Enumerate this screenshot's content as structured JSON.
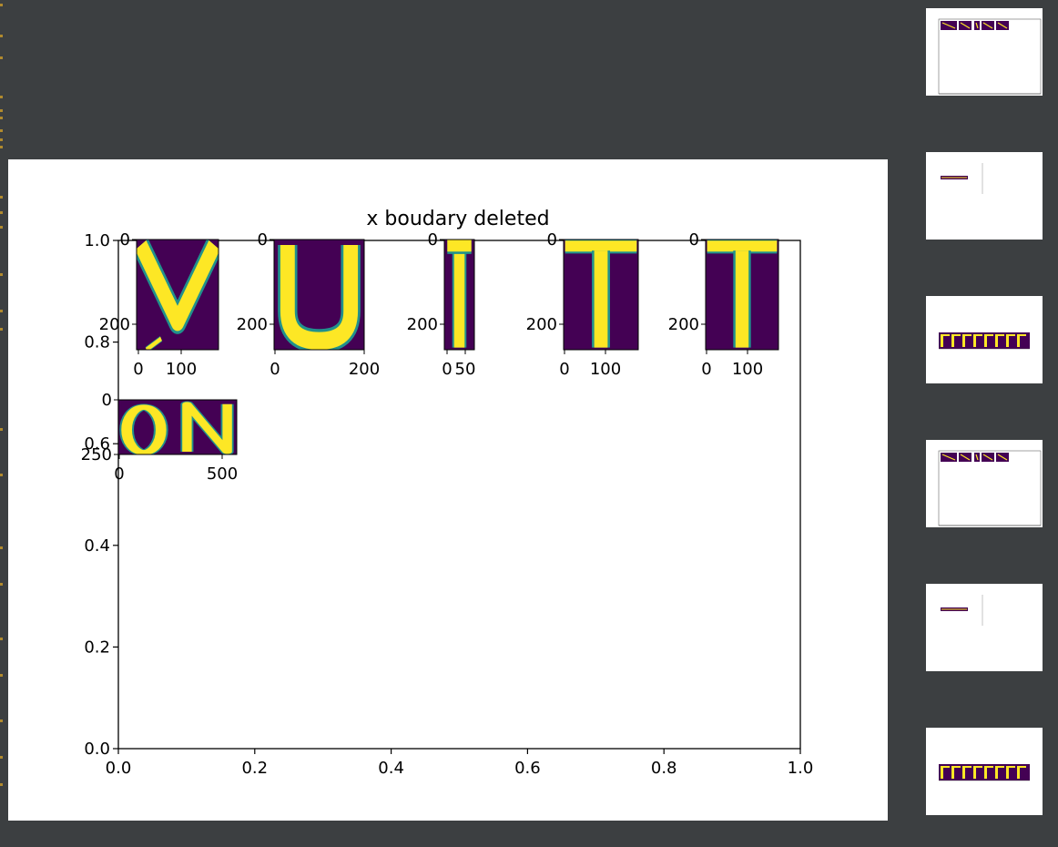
{
  "figure": {
    "title": "x boudary deleted",
    "chart_data": {
      "type": "image-grid",
      "title": "x boudary deleted",
      "main_axes": {
        "xlim": [
          0.0,
          1.0
        ],
        "ylim": [
          0.0,
          1.0
        ],
        "x_ticks": [
          "0.0",
          "0.2",
          "0.4",
          "0.6",
          "0.8",
          "1.0"
        ],
        "y_ticks": [
          "0.0",
          "0.2",
          "0.4",
          "0.6",
          "0.8",
          "1.0"
        ]
      },
      "subimages": [
        {
          "letter": "V",
          "x_ticks": [
            "0",
            "100"
          ],
          "y_ticks": [
            "0",
            "200"
          ]
        },
        {
          "letter": "U",
          "x_ticks": [
            "0",
            "200"
          ],
          "y_ticks": [
            "0",
            "200"
          ]
        },
        {
          "letter": "I",
          "x_ticks": [
            "0",
            "50"
          ],
          "y_ticks": [
            "0",
            "200"
          ]
        },
        {
          "letter": "T",
          "x_ticks": [
            "0",
            "100"
          ],
          "y_ticks": [
            "0",
            "200"
          ]
        },
        {
          "letter": "T",
          "x_ticks": [
            "0",
            "100"
          ],
          "y_ticks": [
            "0",
            "200"
          ]
        },
        {
          "letter": "ON",
          "x_ticks": [
            "0",
            "500"
          ],
          "y_ticks": [
            "0",
            "250"
          ]
        }
      ],
      "colormap": {
        "background": "#440154",
        "foreground": "#fde725",
        "edge": "#21918c"
      }
    }
  },
  "thumbnails": [
    {
      "kind": "grid"
    },
    {
      "kind": "strip"
    },
    {
      "kind": "word"
    },
    {
      "kind": "grid"
    },
    {
      "kind": "strip"
    },
    {
      "kind": "word"
    }
  ]
}
